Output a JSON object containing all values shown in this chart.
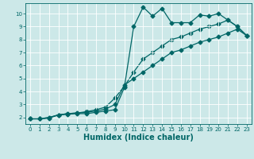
{
  "xlabel": "Humidex (Indice chaleur)",
  "background_color": "#cce8e8",
  "grid_color": "#ffffff",
  "line_color": "#006666",
  "xlim": [
    -0.5,
    23.5
  ],
  "ylim": [
    1.5,
    10.8
  ],
  "xticks": [
    0,
    1,
    2,
    3,
    4,
    5,
    6,
    7,
    8,
    9,
    10,
    11,
    12,
    13,
    14,
    15,
    16,
    17,
    18,
    19,
    20,
    21,
    22,
    23
  ],
  "yticks": [
    2,
    3,
    4,
    5,
    6,
    7,
    8,
    9,
    10
  ],
  "curve1_x": [
    0,
    1,
    2,
    3,
    4,
    5,
    6,
    7,
    8,
    9,
    10,
    11,
    12,
    13,
    14,
    15,
    16,
    17,
    18,
    19,
    20,
    21,
    22,
    23
  ],
  "curve1_y": [
    1.9,
    1.9,
    1.95,
    2.2,
    2.25,
    2.3,
    2.3,
    2.4,
    2.5,
    2.6,
    4.3,
    9.0,
    10.5,
    9.8,
    10.4,
    9.3,
    9.3,
    9.3,
    9.9,
    9.8,
    10.0,
    9.5,
    9.0,
    8.3
  ],
  "curve2_x": [
    0,
    1,
    2,
    3,
    4,
    5,
    6,
    7,
    8,
    9,
    10,
    11,
    12,
    13,
    14,
    15,
    16,
    17,
    18,
    19,
    20,
    21,
    22,
    23
  ],
  "curve2_y": [
    1.9,
    1.9,
    2.0,
    2.2,
    2.3,
    2.35,
    2.4,
    2.5,
    2.65,
    3.0,
    4.5,
    5.0,
    5.5,
    6.0,
    6.5,
    7.0,
    7.2,
    7.5,
    7.8,
    8.0,
    8.2,
    8.5,
    8.8,
    8.3
  ],
  "curve3_x": [
    0,
    1,
    2,
    3,
    4,
    5,
    6,
    7,
    8,
    9,
    10,
    11,
    12,
    13,
    14,
    15,
    16,
    17,
    18,
    19,
    20,
    21,
    22,
    23
  ],
  "curve3_y": [
    1.9,
    1.9,
    2.0,
    2.2,
    2.3,
    2.35,
    2.45,
    2.6,
    2.8,
    3.5,
    4.4,
    5.5,
    6.5,
    7.0,
    7.5,
    8.0,
    8.2,
    8.5,
    8.8,
    9.0,
    9.2,
    9.5,
    9.0,
    8.3
  ],
  "marker_size": 2.5,
  "linewidth": 0.9,
  "xlabel_fontsize": 7
}
